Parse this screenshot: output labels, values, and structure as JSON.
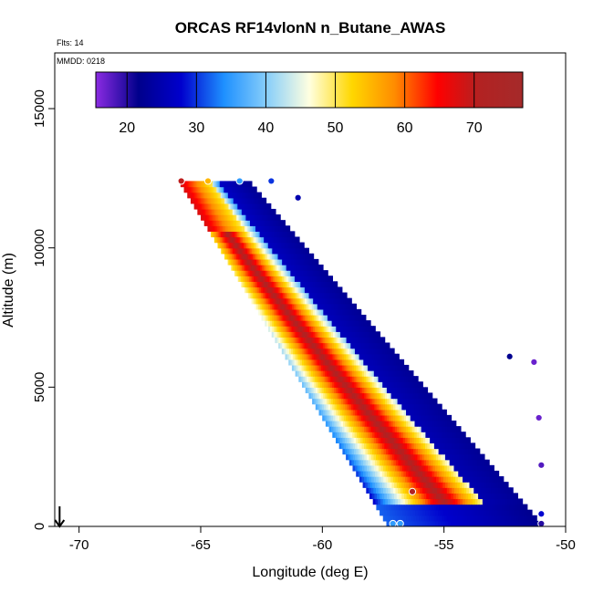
{
  "chart_data": {
    "type": "heatmap",
    "title": "ORCAS RF14vlonN n_Butane_AWAS",
    "flights_label": "Flts: 14",
    "date_label": "MMDD: 0218",
    "xlabel": "Longitude (deg E)",
    "ylabel": "Altitude (m)",
    "xlim": [
      -71,
      -50
    ],
    "ylim": [
      0,
      17000
    ],
    "x_ticks": [
      -70,
      -65,
      -60,
      -55,
      -50
    ],
    "x_tick_labels": [
      "-70",
      "-65",
      "-60",
      "-55",
      "-50"
    ],
    "y_ticks": [
      0,
      5000,
      10000,
      15000
    ],
    "y_tick_labels": [
      "0",
      "5000",
      "10000",
      "15000"
    ],
    "colorbar": {
      "range": [
        15.5,
        77
      ],
      "ticks": [
        20,
        30,
        40,
        50,
        60,
        70
      ],
      "tick_labels": [
        "20",
        "30",
        "40",
        "50",
        "60",
        "70"
      ],
      "colors": [
        "#8b2be2",
        "#00008b",
        "#0000cd",
        "#1e90ff",
        "#87cefa",
        "#ffffe0",
        "#ffd700",
        "#ff8c00",
        "#ff0000",
        "#b22222",
        "#a52a2a"
      ]
    },
    "field": {
      "description": "Interpolated n-butane mixing ratio along flight track",
      "top_altitude": 12400,
      "bottom_altitude": 0,
      "left_edge_top": -65.9,
      "left_edge_bottom": -57.3,
      "right_edge_top": -63.0,
      "right_edge_bottom": -50.9,
      "sample_points": [
        {
          "lon": -65.8,
          "alt": 12400,
          "value": 70
        },
        {
          "lon": -64.7,
          "alt": 12400,
          "value": 55
        },
        {
          "lon": -63.4,
          "alt": 12400,
          "value": 35
        },
        {
          "lon": -62.1,
          "alt": 12400,
          "value": 30
        },
        {
          "lon": -61.0,
          "alt": 11800,
          "value": 25
        },
        {
          "lon": -52.3,
          "alt": 6100,
          "value": 22
        },
        {
          "lon": -51.3,
          "alt": 5900,
          "value": 17
        },
        {
          "lon": -51.1,
          "alt": 3900,
          "value": 17
        },
        {
          "lon": -51.0,
          "alt": 2200,
          "value": 18
        },
        {
          "lon": -56.3,
          "alt": 1250,
          "value": 72
        },
        {
          "lon": -51.0,
          "alt": 450,
          "value": 28
        },
        {
          "lon": -57.1,
          "alt": 100,
          "value": 35
        },
        {
          "lon": -56.8,
          "alt": 100,
          "value": 35
        },
        {
          "lon": -51.0,
          "alt": 100,
          "value": 20
        }
      ]
    },
    "arrow": {
      "lon": -70.8,
      "alt": 0,
      "direction": "down"
    }
  }
}
